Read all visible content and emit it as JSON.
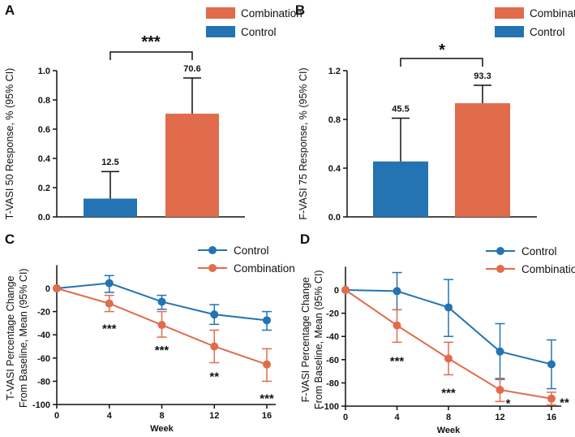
{
  "colors": {
    "control": "#2473b3",
    "combination": "#e06c4c",
    "axis": "#111111"
  },
  "chart_data": [
    {
      "panel": "A",
      "type": "bar",
      "categories": [
        "Control",
        "Combination"
      ],
      "values": [
        0.125,
        0.706
      ],
      "error_upper": [
        0.31,
        0.95
      ],
      "data_labels": [
        "12.5",
        "70.6"
      ],
      "legend": [
        "Combination",
        "Control"
      ],
      "ylabel": "T-VASI 50 Response, % (95% CI)",
      "yticks": [
        "0.0",
        "0.2",
        "0.4",
        "0.6",
        "0.8",
        "1.0"
      ],
      "ylim": [
        0,
        1.0
      ],
      "significance": "***"
    },
    {
      "panel": "B",
      "type": "bar",
      "categories": [
        "Control",
        "Combination"
      ],
      "values": [
        0.455,
        0.933
      ],
      "error_upper": [
        0.81,
        1.08
      ],
      "data_labels": [
        "45.5",
        "93.3"
      ],
      "legend": [
        "Combination",
        "Control"
      ],
      "ylabel": "F-VASI 75 Response, % (95% CI)",
      "yticks": [
        "0.0",
        "0.4",
        "0.8",
        "1.2"
      ],
      "ylim": [
        0,
        1.2
      ],
      "significance": "*"
    },
    {
      "panel": "C",
      "type": "line",
      "x": [
        0,
        4,
        8,
        12,
        16
      ],
      "xticks": [
        "0",
        "4",
        "8",
        "12",
        "16"
      ],
      "xlabel": "Week",
      "ylabel_lines": [
        "T-VASI Percentage Change",
        "From Baseline, Mean (95% CI)"
      ],
      "yticks": [
        "0",
        "-20",
        "-40",
        "-60",
        "-80",
        "-100"
      ],
      "ylim": [
        -100,
        20
      ],
      "series": [
        {
          "name": "Control",
          "values": [
            0,
            4.5,
            -11.5,
            -22.5,
            -27.5
          ],
          "err_low": [
            0,
            -3.5,
            -18,
            -31,
            -36
          ],
          "err_high": [
            0,
            11,
            -6,
            -14,
            -20
          ]
        },
        {
          "name": "Combination",
          "values": [
            0,
            -13,
            -31.5,
            -50,
            -65.5
          ],
          "err_low": [
            0,
            -20,
            -42,
            -64,
            -80
          ],
          "err_high": [
            0,
            -6,
            -20,
            -36,
            -52
          ]
        }
      ],
      "stars": [
        "***",
        "***",
        "**",
        "***"
      ]
    },
    {
      "panel": "D",
      "type": "line",
      "x": [
        0,
        4,
        8,
        12,
        16
      ],
      "xticks": [
        "0",
        "4",
        "8",
        "12",
        "16"
      ],
      "xlabel": "Week",
      "ylabel_lines": [
        "F-VASI Percentage Change",
        "From Baseline, Mean (95% CI)"
      ],
      "yticks": [
        "0",
        "-20",
        "-40",
        "-60",
        "-80",
        "-100"
      ],
      "ylim": [
        -100,
        20
      ],
      "series": [
        {
          "name": "Control",
          "values": [
            0,
            -1,
            -15,
            -53,
            -64
          ],
          "err_low": [
            0,
            -17,
            -40,
            -77,
            -85
          ],
          "err_high": [
            0,
            15,
            9,
            -29,
            -43
          ]
        },
        {
          "name": "Combination",
          "values": [
            0,
            -30.5,
            -59,
            -86,
            -93.5
          ],
          "err_low": [
            0,
            -45,
            -73,
            -96,
            -99
          ],
          "err_high": [
            0,
            -17,
            -45,
            -76,
            -88
          ]
        }
      ],
      "stars": [
        "***",
        "***",
        "*",
        "**"
      ]
    }
  ]
}
